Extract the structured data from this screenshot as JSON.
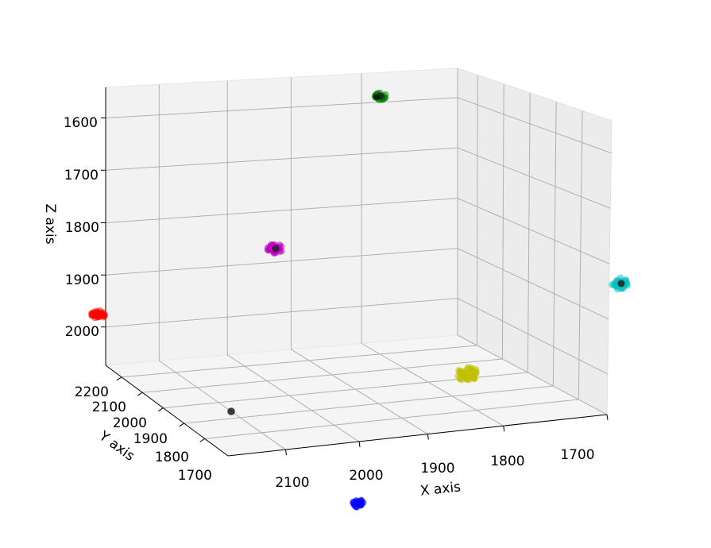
{
  "chart_data": {
    "type": "scatter3d",
    "title": "",
    "axes": {
      "x": {
        "label": "X axis",
        "ticks": [
          "2100",
          "2000",
          "1900",
          "1800",
          "1700"
        ]
      },
      "y": {
        "label": "Y axis",
        "ticks": [
          "2200",
          "2100",
          "2000",
          "1900",
          "1800",
          "1700"
        ]
      },
      "z": {
        "label": "Z axis",
        "ticks": [
          "1600",
          "1700",
          "1800",
          "1900",
          "2000"
        ]
      }
    },
    "grid": true,
    "legend": "none",
    "clusters": [
      {
        "color": "#008000",
        "count": 30,
        "centroid": true
      },
      {
        "color": "#bf00bf",
        "count": 30,
        "centroid": true
      },
      {
        "color": "#ff0000",
        "count": 30,
        "centroid": false
      },
      {
        "color": "#00bfbf",
        "count": 30,
        "centroid": true
      },
      {
        "color": "#bfbf00",
        "count": 45,
        "centroid": false
      },
      {
        "color": "#0000ff",
        "count": 30,
        "centroid": false
      }
    ],
    "outliers": [
      {
        "color": "#000000",
        "count": 1
      }
    ]
  }
}
